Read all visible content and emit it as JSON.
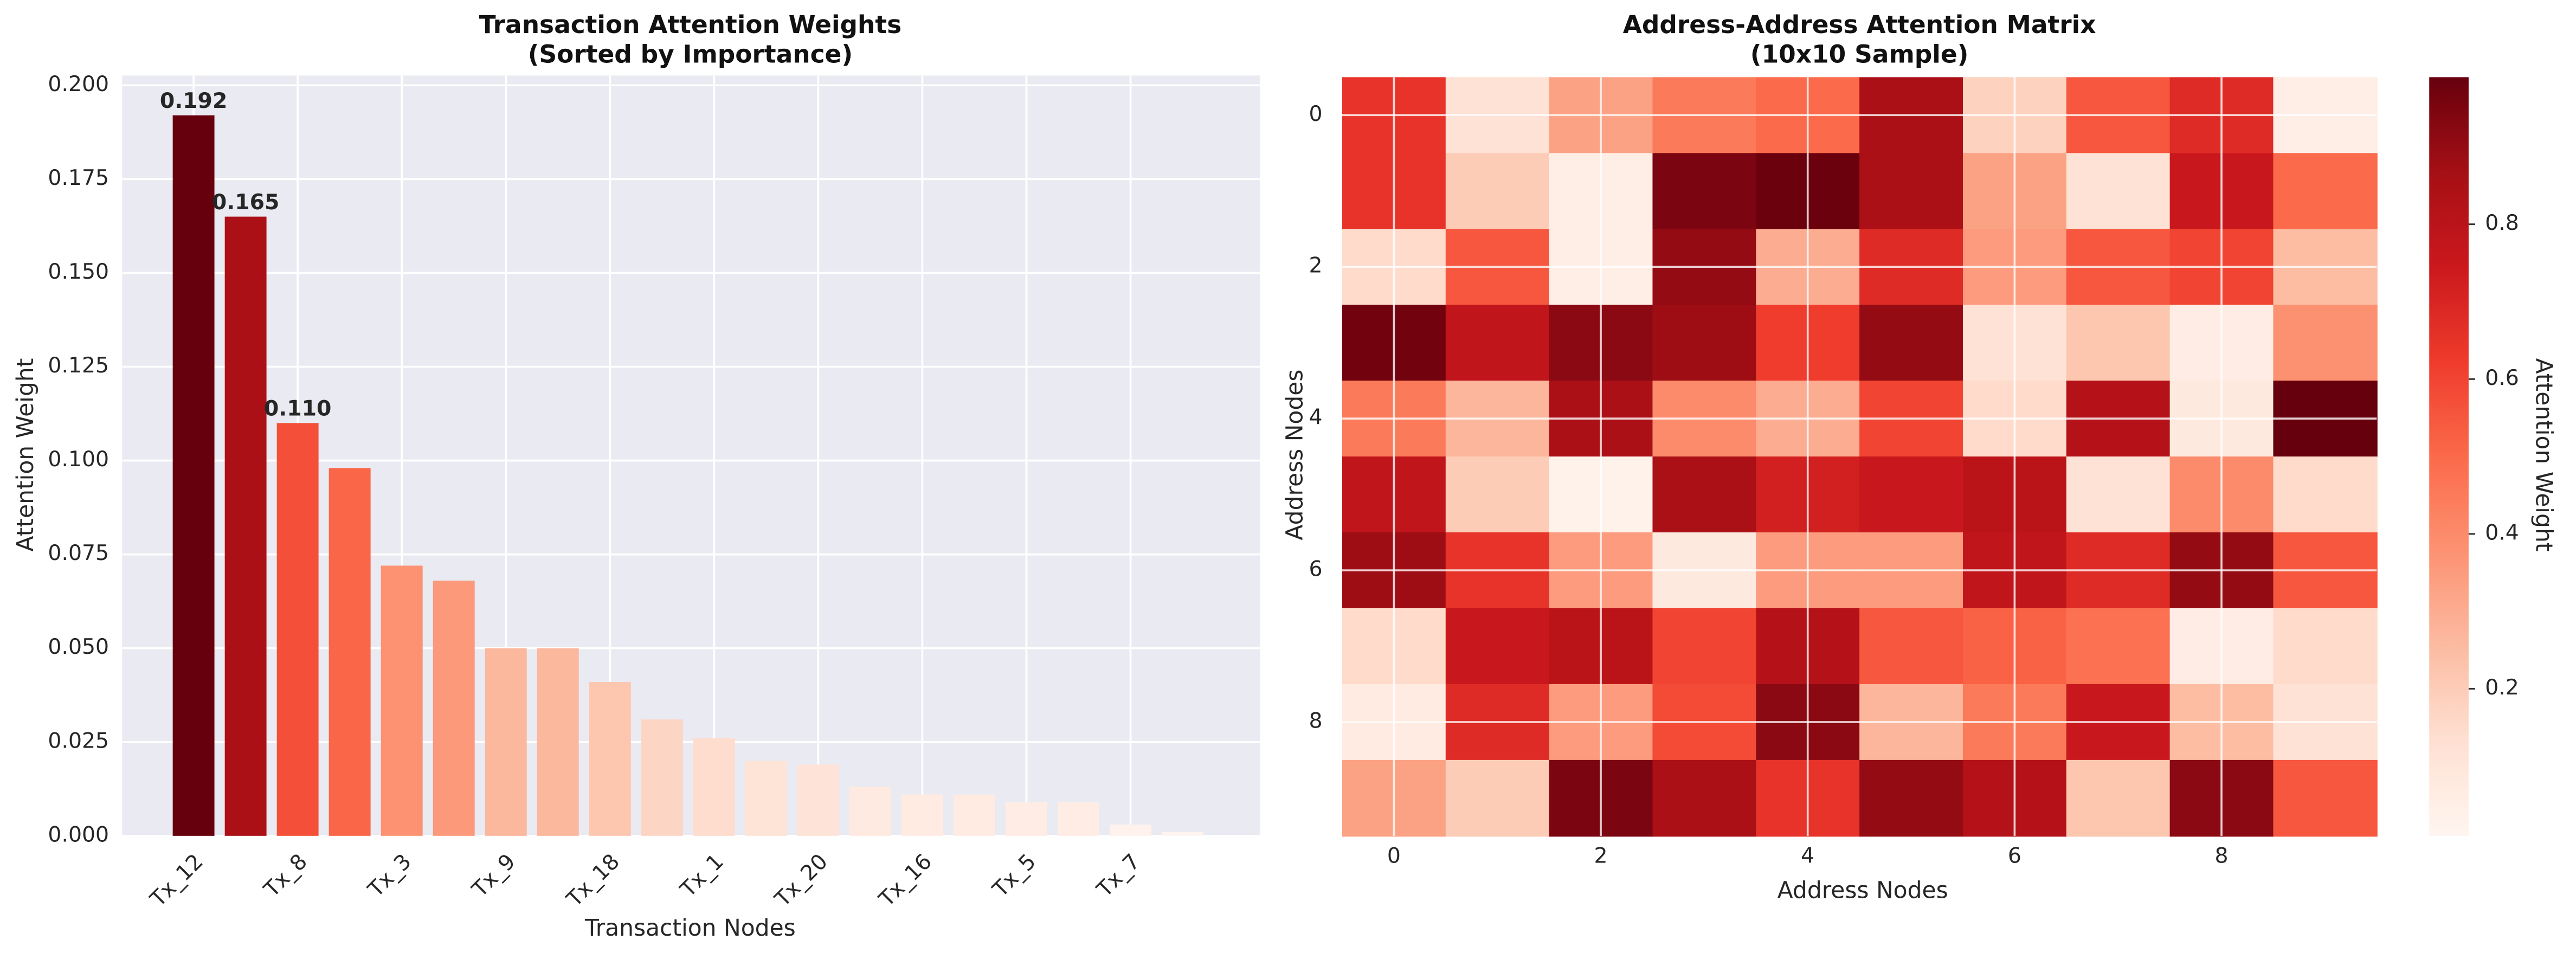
{
  "chart_data": [
    {
      "type": "bar",
      "title": "Transaction Attention Weights",
      "subtitle": "(Sorted by Importance)",
      "x_label": "Transaction Nodes",
      "y_label": "Attention Weight",
      "colormap": "Reds",
      "categories": [
        "Tx_12",
        null,
        "Tx_8",
        null,
        "Tx_3",
        null,
        "Tx_9",
        null,
        "Tx_18",
        null,
        "Tx_1",
        null,
        "Tx_20",
        null,
        "Tx_16",
        null,
        "Tx_5",
        null,
        "Tx_7",
        null
      ],
      "values": [
        0.192,
        0.165,
        0.11,
        0.098,
        0.072,
        0.068,
        0.05,
        0.05,
        0.041,
        0.031,
        0.026,
        0.02,
        0.019,
        0.013,
        0.011,
        0.011,
        0.009,
        0.009,
        0.003,
        0.001
      ],
      "value_labels": [
        "0.192",
        "0.165",
        "0.110",
        null,
        null,
        null,
        null,
        null,
        null,
        null,
        null,
        null,
        null,
        null,
        null,
        null,
        null,
        null,
        null,
        null
      ],
      "ylim": [
        0,
        0.2026
      ],
      "yticks": [
        {
          "value": 0,
          "label": "0.000"
        },
        {
          "value": 0.025,
          "label": "0.025"
        },
        {
          "value": 0.05,
          "label": "0.050"
        },
        {
          "value": 0.075,
          "label": "0.075"
        },
        {
          "value": 0.1,
          "label": "0.100"
        },
        {
          "value": 0.125,
          "label": "0.125"
        },
        {
          "value": 0.15,
          "label": "0.150"
        },
        {
          "value": 0.175,
          "label": "0.175"
        },
        {
          "value": 0.2,
          "label": "0.200"
        }
      ],
      "grid": true
    },
    {
      "type": "heatmap",
      "title": "Address-Address Attention Matrix",
      "subtitle": "(10x10 Sample)",
      "x_label": "Address Nodes",
      "y_label": "Address Nodes",
      "colormap": "Reds",
      "xlim": [
        -0.5,
        9.5
      ],
      "ylim": [
        9.5,
        -0.5
      ],
      "xticks": [
        0,
        2,
        4,
        6,
        8
      ],
      "yticks": [
        0,
        2,
        4,
        6,
        8
      ],
      "values": [
        [
          0.65,
          0.12,
          0.33,
          0.45,
          0.5,
          0.85,
          0.18,
          0.55,
          0.68,
          0.05
        ],
        [
          0.65,
          0.2,
          0.05,
          0.95,
          0.98,
          0.85,
          0.33,
          0.12,
          0.75,
          0.5
        ],
        [
          0.15,
          0.55,
          0.05,
          0.9,
          0.3,
          0.68,
          0.35,
          0.55,
          0.6,
          0.25
        ],
        [
          0.97,
          0.78,
          0.92,
          0.88,
          0.62,
          0.9,
          0.12,
          0.22,
          0.06,
          0.38
        ],
        [
          0.45,
          0.27,
          0.85,
          0.4,
          0.3,
          0.6,
          0.15,
          0.82,
          0.08,
          0.99
        ],
        [
          0.78,
          0.2,
          0.03,
          0.85,
          0.72,
          0.75,
          0.8,
          0.12,
          0.4,
          0.15
        ],
        [
          0.88,
          0.65,
          0.35,
          0.08,
          0.35,
          0.35,
          0.78,
          0.68,
          0.9,
          0.55
        ],
        [
          0.15,
          0.75,
          0.8,
          0.6,
          0.82,
          0.55,
          0.52,
          0.48,
          0.06,
          0.15
        ],
        [
          0.07,
          0.68,
          0.35,
          0.58,
          0.92,
          0.27,
          0.45,
          0.75,
          0.25,
          0.12
        ],
        [
          0.33,
          0.2,
          0.95,
          0.85,
          0.65,
          0.9,
          0.82,
          0.22,
          0.92,
          0.55
        ]
      ],
      "colorbar": {
        "label": "Attention Weight",
        "lim": [
          0.01,
          0.99
        ],
        "ticks": [
          0.2,
          0.4,
          0.6,
          0.8
        ]
      },
      "grid": true
    }
  ]
}
